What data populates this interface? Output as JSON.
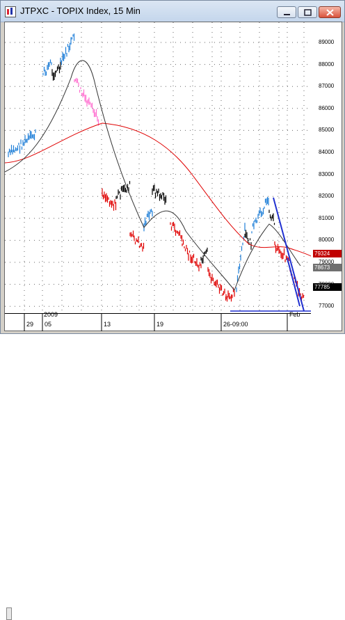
{
  "window": {
    "title": "JTPXC - TOPIX Index, 15 Min"
  },
  "yaxis": {
    "ticks": [
      "89000",
      "88000",
      "87000",
      "86000",
      "85000",
      "84000",
      "83000",
      "82000",
      "81000",
      "80000",
      "79000",
      "78000",
      "77000"
    ]
  },
  "price_tags": [
    {
      "label": "79324",
      "color": "#c00000"
    },
    {
      "label": "78673",
      "color": "#707070"
    },
    {
      "label": "77785",
      "color": "#000000"
    }
  ],
  "xaxis": {
    "labels": [
      "29",
      "05",
      "13",
      "19",
      "26-09:00",
      "Feb"
    ],
    "year_labels": [
      "2009"
    ]
  },
  "colors": {
    "up": "#1f7fd8",
    "down": "#e00000",
    "neutral": "#000000",
    "pink": "#ff6fd0",
    "ma_fast": "#000000",
    "ma_slow": "#e00000",
    "trend": "#2030d0"
  }
}
